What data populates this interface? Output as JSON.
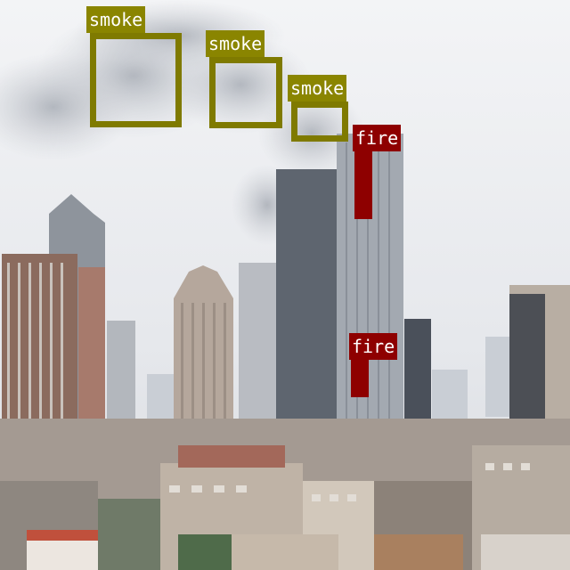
{
  "image": {
    "description_colors": {
      "sky": "#eceef1",
      "haze": "#dde1e6",
      "smoke": "#b8bcc4",
      "building_dark": "#5f6670",
      "building_mid": "#9aa0a8",
      "building_brick": "#8a6a5c",
      "roof_red": "#c0503c"
    }
  },
  "detections": [
    {
      "label": "smoke",
      "class": "smoke",
      "color": "#8a8500"
    },
    {
      "label": "smoke",
      "class": "smoke",
      "color": "#8a8500"
    },
    {
      "label": "smoke",
      "class": "smoke",
      "color": "#8a8500"
    },
    {
      "label": "fire",
      "class": "fire",
      "color": "#8e0000"
    },
    {
      "label": "fire",
      "class": "fire",
      "color": "#8e0000"
    }
  ]
}
